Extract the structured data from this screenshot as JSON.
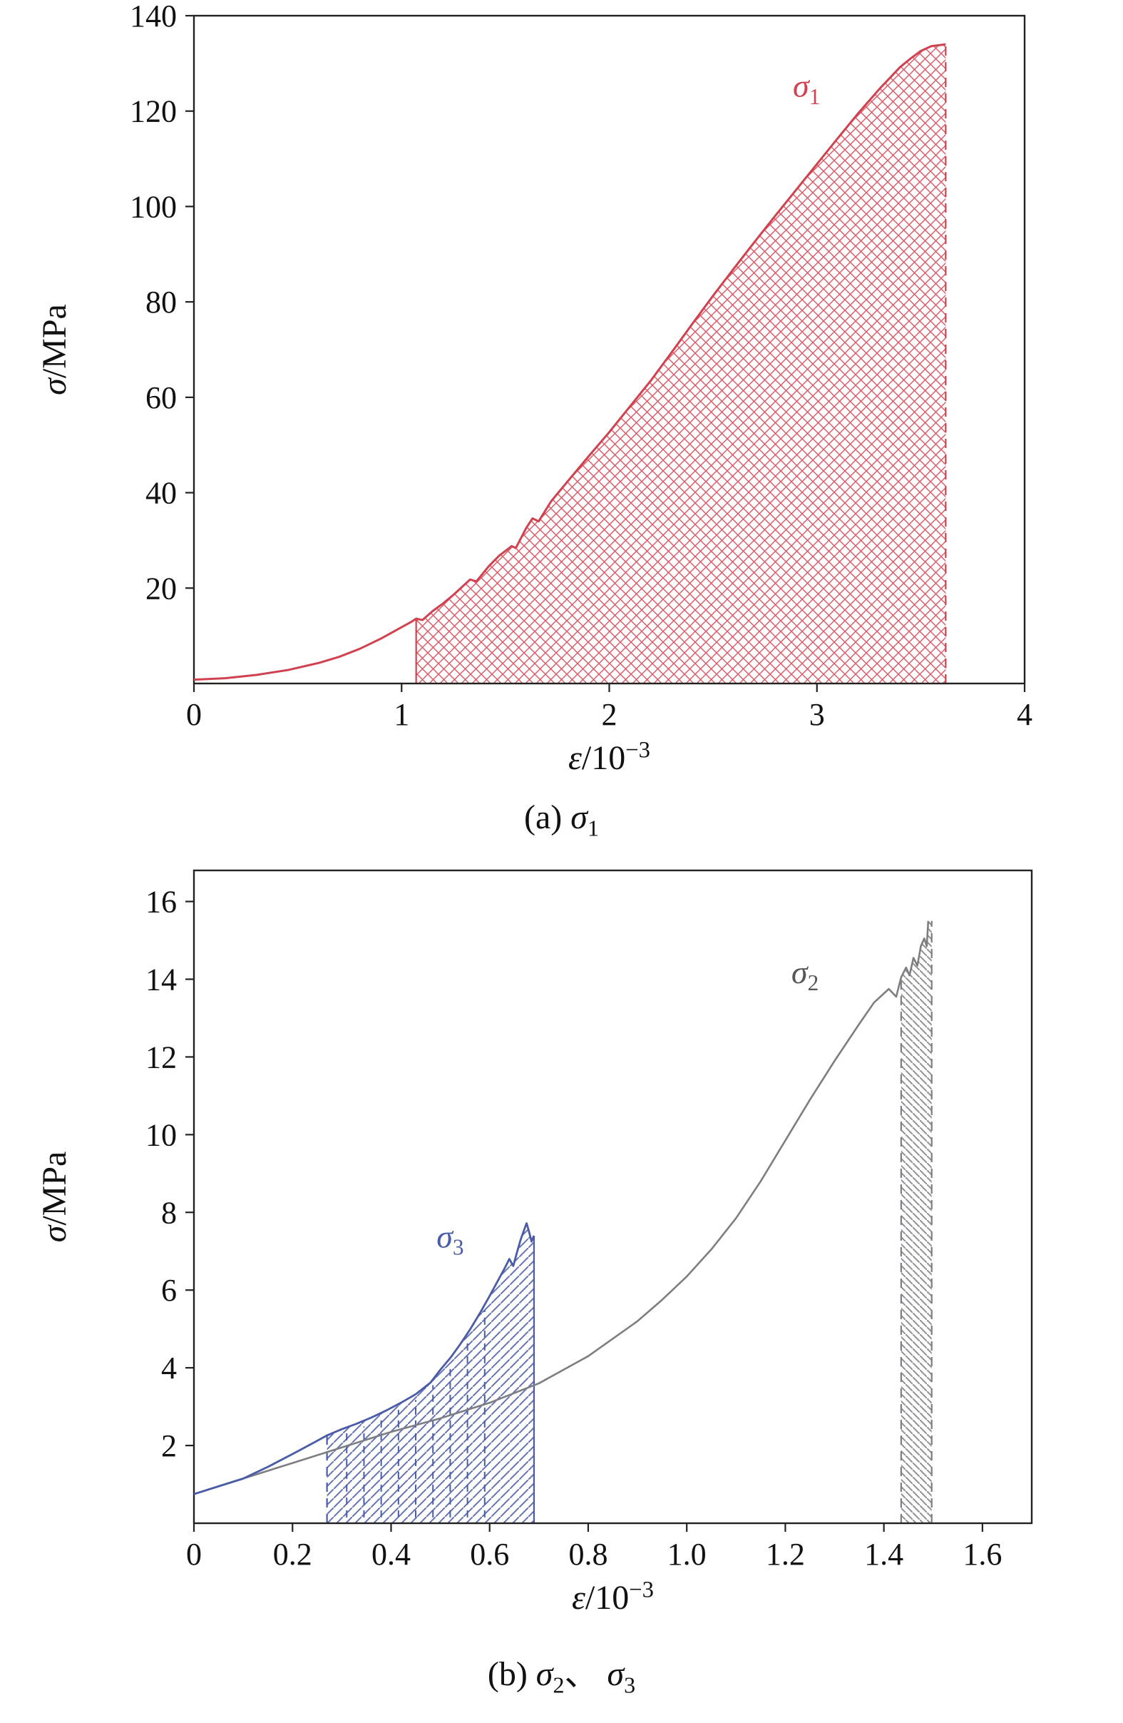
{
  "figure": {
    "background": "#ffffff",
    "frame_color": "#222222",
    "text_color": "#111111"
  },
  "captions": {
    "a_parts": [
      {
        "t": "(a) "
      },
      {
        "t": "σ",
        "i": 1
      },
      {
        "t": "1",
        "sub": 1
      }
    ],
    "b_parts": [
      {
        "t": "(b) "
      },
      {
        "t": "σ",
        "i": 1
      },
      {
        "t": "2",
        "sub": 1
      },
      {
        "t": "、 "
      },
      {
        "t": "σ",
        "i": 1
      },
      {
        "t": "3",
        "sub": 1
      }
    ]
  },
  "chart_data": [
    {
      "id": "svg-a",
      "type": "line",
      "title": "",
      "xlabel": "ε/10−3",
      "ylabel": "σ/MPa",
      "xlabel_parts": [
        {
          "t": "ε",
          "i": 1
        },
        {
          "t": "/10"
        },
        {
          "t": "−3",
          "sup": 1
        }
      ],
      "ylabel_parts": [
        {
          "t": "σ",
          "i": 1
        },
        {
          "t": "/MPa"
        }
      ],
      "xlim": [
        0,
        4
      ],
      "ylim": [
        0,
        140
      ],
      "xticks": [
        0,
        1,
        2,
        3,
        4
      ],
      "xtick_labels": [
        "0",
        "1",
        "2",
        "3",
        "4"
      ],
      "yticks": [
        20,
        40,
        60,
        80,
        100,
        120,
        140
      ],
      "ytick_labels": [
        "20",
        "40",
        "60",
        "80",
        "100",
        "120",
        "140"
      ],
      "grid": false,
      "series": [
        {
          "name": "sigma1",
          "color": "#d0424f",
          "line_width": 3,
          "label_parts": [
            {
              "t": "σ",
              "i": 1
            },
            {
              "t": "1",
              "sub": 1
            }
          ],
          "label_at": [
            2.95,
            123
          ],
          "label_color": "#d0424f",
          "points": [
            [
              0,
              0.8
            ],
            [
              0.15,
              1.1
            ],
            [
              0.3,
              1.8
            ],
            [
              0.45,
              2.8
            ],
            [
              0.6,
              4.3
            ],
            [
              0.7,
              5.6
            ],
            [
              0.8,
              7.3
            ],
            [
              0.9,
              9.4
            ],
            [
              1,
              11.8
            ],
            [
              1.05,
              13
            ],
            [
              1.07,
              13.6
            ],
            [
              1.1,
              13.3
            ],
            [
              1.15,
              15.2
            ],
            [
              1.2,
              16.8
            ],
            [
              1.25,
              18.6
            ],
            [
              1.3,
              20.6
            ],
            [
              1.33,
              21.8
            ],
            [
              1.36,
              21.4
            ],
            [
              1.42,
              24.6
            ],
            [
              1.47,
              26.8
            ],
            [
              1.5,
              27.8
            ],
            [
              1.53,
              28.8
            ],
            [
              1.55,
              28.4
            ],
            [
              1.6,
              32.6
            ],
            [
              1.63,
              34.6
            ],
            [
              1.66,
              34
            ],
            [
              1.72,
              38.2
            ],
            [
              1.8,
              42.4
            ],
            [
              1.9,
              47.6
            ],
            [
              2,
              52.7
            ],
            [
              2.1,
              58.1
            ],
            [
              2.2,
              63.5
            ],
            [
              2.3,
              69.4
            ],
            [
              2.4,
              75.4
            ],
            [
              2.5,
              81.3
            ],
            [
              2.6,
              87
            ],
            [
              2.7,
              92.6
            ],
            [
              2.8,
              98.1
            ],
            [
              2.9,
              103.5
            ],
            [
              3,
              108.9
            ],
            [
              3.1,
              114.3
            ],
            [
              3.2,
              119.6
            ],
            [
              3.3,
              124.6
            ],
            [
              3.4,
              129.2
            ],
            [
              3.45,
              131
            ],
            [
              3.5,
              132.6
            ],
            [
              3.55,
              133.6
            ],
            [
              3.62,
              134
            ]
          ],
          "region": {
            "x1": 1.07,
            "x2": 3.62,
            "y0": 0,
            "pattern": "cross",
            "spacing": 15,
            "stroke_w": 1.5,
            "left_edge": "solid",
            "right_edge": "dashed"
          }
        }
      ]
    },
    {
      "id": "svg-b",
      "type": "line",
      "title": "",
      "xlabel": "ε/10−3",
      "ylabel": "σ/MPa",
      "xlabel_parts": [
        {
          "t": "ε",
          "i": 1
        },
        {
          "t": "/10"
        },
        {
          "t": "−3",
          "sup": 1
        }
      ],
      "ylabel_parts": [
        {
          "t": "σ",
          "i": 1
        },
        {
          "t": "/MPa"
        }
      ],
      "xlim": [
        0,
        1.7
      ],
      "ylim": [
        0,
        16.8
      ],
      "xticks": [
        0,
        0.2,
        0.4,
        0.6,
        0.8,
        1.0,
        1.2,
        1.4,
        1.6
      ],
      "xtick_labels": [
        "0",
        "0.2",
        "0.4",
        "0.6",
        "0.8",
        "1.0",
        "1.2",
        "1.4",
        "1.6"
      ],
      "yticks": [
        2,
        4,
        6,
        8,
        10,
        12,
        14,
        16
      ],
      "ytick_labels": [
        "2",
        "4",
        "6",
        "8",
        "10",
        "12",
        "14",
        "16"
      ],
      "grid": false,
      "series": [
        {
          "name": "sigma2",
          "color": "#7d7e82",
          "line_width": 2.6,
          "label_parts": [
            {
              "t": "σ",
              "i": 1
            },
            {
              "t": "2",
              "sub": 1
            }
          ],
          "label_at": [
            1.24,
            13.9
          ],
          "label_color": "#55565a",
          "points": [
            [
              0,
              0.75
            ],
            [
              0.1,
              1.15
            ],
            [
              0.2,
              1.55
            ],
            [
              0.3,
              1.95
            ],
            [
              0.4,
              2.35
            ],
            [
              0.5,
              2.7
            ],
            [
              0.6,
              3.1
            ],
            [
              0.7,
              3.6
            ],
            [
              0.8,
              4.3
            ],
            [
              0.9,
              5.2
            ],
            [
              0.95,
              5.75
            ],
            [
              1,
              6.35
            ],
            [
              1.05,
              7.05
            ],
            [
              1.1,
              7.85
            ],
            [
              1.15,
              8.8
            ],
            [
              1.2,
              9.85
            ],
            [
              1.25,
              10.9
            ],
            [
              1.3,
              11.9
            ],
            [
              1.35,
              12.85
            ],
            [
              1.38,
              13.4
            ],
            [
              1.41,
              13.75
            ],
            [
              1.425,
              13.55
            ],
            [
              1.435,
              14.05
            ],
            [
              1.445,
              14.3
            ],
            [
              1.452,
              14.1
            ],
            [
              1.46,
              14.55
            ],
            [
              1.468,
              14.35
            ],
            [
              1.475,
              14.85
            ],
            [
              1.482,
              15.05
            ],
            [
              1.487,
              14.85
            ],
            [
              1.49,
              15.5
            ]
          ],
          "region": {
            "x1": 1.435,
            "x2": 1.497,
            "y0": 0,
            "pattern": "diag-down",
            "spacing": 10,
            "stroke_w": 2,
            "left_edge": "dashed",
            "right_edge": "dashed"
          }
        },
        {
          "name": "sigma3",
          "color": "#4a5ca8",
          "line_width": 2.8,
          "label_parts": [
            {
              "t": "σ",
              "i": 1
            },
            {
              "t": "3",
              "sub": 1
            }
          ],
          "label_at": [
            0.52,
            7.1
          ],
          "label_color": "#4a5ca8",
          "points": [
            [
              0,
              0.75
            ],
            [
              0.05,
              0.95
            ],
            [
              0.1,
              1.15
            ],
            [
              0.15,
              1.45
            ],
            [
              0.2,
              1.78
            ],
            [
              0.25,
              2.12
            ],
            [
              0.27,
              2.26
            ],
            [
              0.3,
              2.42
            ],
            [
              0.33,
              2.56
            ],
            [
              0.36,
              2.72
            ],
            [
              0.39,
              2.9
            ],
            [
              0.42,
              3.1
            ],
            [
              0.45,
              3.32
            ],
            [
              0.48,
              3.62
            ],
            [
              0.5,
              3.95
            ],
            [
              0.52,
              4.25
            ],
            [
              0.54,
              4.6
            ],
            [
              0.56,
              4.98
            ],
            [
              0.58,
              5.4
            ],
            [
              0.6,
              5.85
            ],
            [
              0.615,
              6.2
            ],
            [
              0.63,
              6.55
            ],
            [
              0.64,
              6.8
            ],
            [
              0.648,
              6.62
            ],
            [
              0.655,
              6.95
            ],
            [
              0.663,
              7.3
            ],
            [
              0.67,
              7.55
            ],
            [
              0.675,
              7.72
            ],
            [
              0.68,
              7.5
            ],
            [
              0.685,
              7.25
            ],
            [
              0.69,
              7.4
            ]
          ],
          "region": {
            "x1": 0.27,
            "x2": 0.69,
            "y0": 0,
            "pattern": "diag-up",
            "spacing": 13,
            "stroke_w": 2,
            "left_edge": "dashed",
            "right_edge": "solid",
            "inner_dashed_x": [
              0.31,
              0.345,
              0.38,
              0.415,
              0.45,
              0.485,
              0.52,
              0.555,
              0.59
            ]
          }
        }
      ]
    }
  ]
}
